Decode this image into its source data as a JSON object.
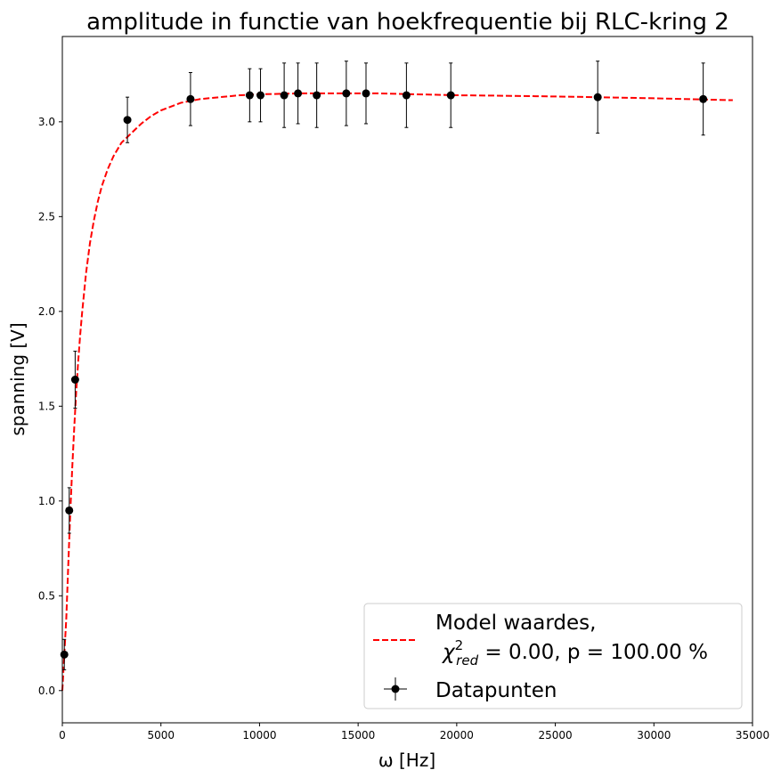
{
  "chart_data": {
    "type": "scatter",
    "title": "amplitude in functie van hoekfrequentie bij RLC-kring 2",
    "xlabel": "ω [Hz]",
    "ylabel": "spanning [V]",
    "xlim": [
      0,
      35000
    ],
    "ylim": [
      -0.17,
      3.45
    ],
    "xticks": [
      0,
      5000,
      10000,
      15000,
      20000,
      25000,
      30000,
      35000
    ],
    "yticks": [
      0.0,
      0.5,
      1.0,
      1.5,
      2.0,
      2.5,
      3.0
    ],
    "grid": false,
    "legend_position": "lower-right",
    "series": [
      {
        "name": "Model waardes,",
        "name_line2_prefix": "χ",
        "name_line2_sup": "2",
        "name_line2_sub": "red",
        "name_line2_rest": " = 0.00, p = 100.00 %",
        "kind": "line",
        "style": "dashed",
        "color": "#ff0000",
        "x": [
          0,
          100,
          200,
          300,
          400,
          500,
          600,
          700,
          800,
          900,
          1000,
          1200,
          1400,
          1600,
          1800,
          2000,
          2300,
          2600,
          3000,
          3300,
          3600,
          4000,
          4500,
          5000,
          5500,
          6000,
          7000,
          8000,
          9000,
          10000,
          12000,
          14000,
          16000,
          18000,
          20000,
          22000,
          24000,
          26000,
          28000,
          30000,
          32000,
          34000
        ],
        "y": [
          0.0,
          0.19,
          0.38,
          0.66,
          0.93,
          1.17,
          1.38,
          1.57,
          1.73,
          1.87,
          1.99,
          2.2,
          2.36,
          2.48,
          2.58,
          2.66,
          2.75,
          2.82,
          2.89,
          2.92,
          2.95,
          2.99,
          3.03,
          3.06,
          3.08,
          3.1,
          3.12,
          3.13,
          3.14,
          3.145,
          3.15,
          3.15,
          3.15,
          3.145,
          3.14,
          3.138,
          3.135,
          3.132,
          3.128,
          3.124,
          3.119,
          3.114
        ]
      },
      {
        "name": "Datapunten",
        "kind": "errorbar",
        "color": "#000000",
        "x": [
          100,
          350,
          650,
          3300,
          6500,
          9500,
          10050,
          11250,
          11950,
          12900,
          14400,
          15400,
          17450,
          19700,
          27150,
          32500
        ],
        "y": [
          0.19,
          0.95,
          1.64,
          3.01,
          3.12,
          3.14,
          3.14,
          3.14,
          3.15,
          3.14,
          3.15,
          3.15,
          3.14,
          3.14,
          3.13,
          3.12
        ],
        "yerr": [
          0.08,
          0.12,
          0.15,
          0.12,
          0.14,
          0.14,
          0.14,
          0.17,
          0.16,
          0.17,
          0.17,
          0.16,
          0.17,
          0.17,
          0.19,
          0.19
        ]
      }
    ]
  }
}
